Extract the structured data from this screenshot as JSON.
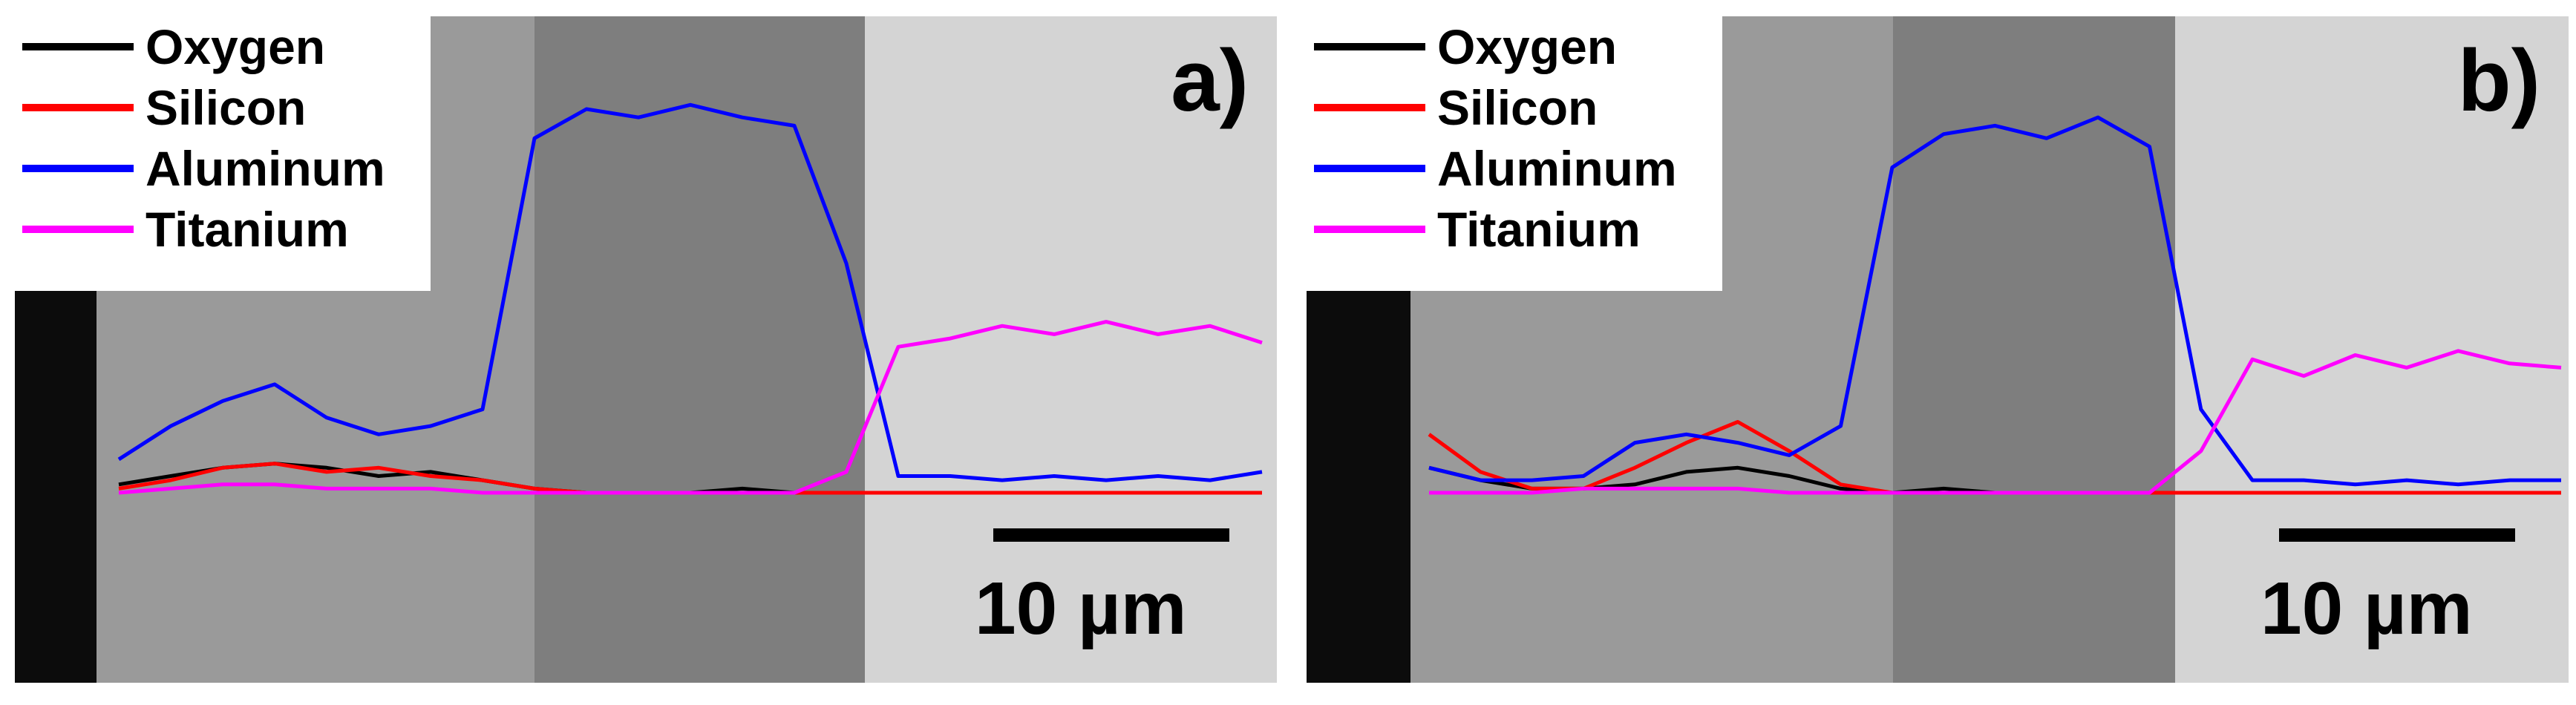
{
  "figure": {
    "panels": [
      {
        "label": "a)",
        "scalebar_label": "10 µm"
      },
      {
        "label": "b)",
        "scalebar_label": "10 µm"
      }
    ],
    "legend": [
      {
        "name": "Oxygen",
        "color": "#000000"
      },
      {
        "name": "Silicon",
        "color": "#ff0000"
      },
      {
        "name": "Aluminum",
        "color": "#0000ff"
      },
      {
        "name": "Titanium",
        "color": "#ff00ff"
      }
    ]
  },
  "chart_data": [
    {
      "type": "line",
      "panel": "a)",
      "x_unit": "µm",
      "xlim": [
        0,
        22
      ],
      "ylim": [
        0,
        1
      ],
      "grid": false,
      "legend_position": "top-left",
      "scalebar_um": 10,
      "series": [
        {
          "name": "Oxygen",
          "color": "#000000",
          "x": [
            0,
            1,
            2,
            3,
            4,
            5,
            6,
            7,
            8,
            9,
            10,
            11,
            12,
            13,
            14,
            15,
            16,
            17,
            18,
            19,
            20,
            21,
            22
          ],
          "y": [
            0.02,
            0.04,
            0.06,
            0.07,
            0.06,
            0.04,
            0.05,
            0.03,
            0.01,
            0.0,
            0.0,
            0.0,
            0.01,
            0.0,
            0.0,
            0.0,
            0.0,
            0.0,
            0.0,
            0.0,
            0.0,
            0.0,
            0.0
          ]
        },
        {
          "name": "Silicon",
          "color": "#ff0000",
          "x": [
            0,
            1,
            2,
            3,
            4,
            5,
            6,
            7,
            8,
            9,
            10,
            11,
            12,
            13,
            14,
            15,
            16,
            17,
            18,
            19,
            20,
            21,
            22
          ],
          "y": [
            0.01,
            0.03,
            0.06,
            0.07,
            0.05,
            0.06,
            0.04,
            0.03,
            0.01,
            0.0,
            0.0,
            0.0,
            0.0,
            0.0,
            0.0,
            0.0,
            0.0,
            0.0,
            0.0,
            0.0,
            0.0,
            0.0,
            0.0
          ]
        },
        {
          "name": "Aluminum",
          "color": "#0000ff",
          "x": [
            0,
            1,
            2,
            3,
            4,
            5,
            6,
            7,
            8,
            9,
            10,
            11,
            12,
            13,
            14,
            15,
            16,
            17,
            18,
            19,
            20,
            21,
            22
          ],
          "y": [
            0.08,
            0.16,
            0.22,
            0.26,
            0.18,
            0.14,
            0.16,
            0.2,
            0.85,
            0.92,
            0.9,
            0.93,
            0.9,
            0.88,
            0.55,
            0.04,
            0.04,
            0.03,
            0.04,
            0.03,
            0.04,
            0.03,
            0.05
          ]
        },
        {
          "name": "Titanium",
          "color": "#ff00ff",
          "x": [
            0,
            1,
            2,
            3,
            4,
            5,
            6,
            7,
            8,
            9,
            10,
            11,
            12,
            13,
            14,
            15,
            16,
            17,
            18,
            19,
            20,
            21,
            22
          ],
          "y": [
            0.0,
            0.01,
            0.02,
            0.02,
            0.01,
            0.01,
            0.01,
            0.0,
            0.0,
            0.0,
            0.0,
            0.0,
            0.0,
            0.0,
            0.05,
            0.35,
            0.37,
            0.4,
            0.38,
            0.41,
            0.38,
            0.4,
            0.36
          ]
        }
      ]
    },
    {
      "type": "line",
      "panel": "b)",
      "x_unit": "µm",
      "xlim": [
        0,
        22
      ],
      "ylim": [
        0,
        1
      ],
      "grid": false,
      "legend_position": "top-left",
      "scalebar_um": 10,
      "series": [
        {
          "name": "Oxygen",
          "color": "#000000",
          "x": [
            0,
            1,
            2,
            3,
            4,
            5,
            6,
            7,
            8,
            9,
            10,
            11,
            12,
            13,
            14,
            15,
            16,
            17,
            18,
            19,
            20,
            21,
            22
          ],
          "y": [
            0.06,
            0.03,
            0.01,
            0.01,
            0.02,
            0.05,
            0.06,
            0.04,
            0.01,
            0.0,
            0.01,
            0.0,
            0.0,
            0.0,
            0.0,
            0.0,
            0.0,
            0.0,
            0.0,
            0.0,
            0.0,
            0.0,
            0.0
          ]
        },
        {
          "name": "Silicon",
          "color": "#ff0000",
          "x": [
            0,
            1,
            2,
            3,
            4,
            5,
            6,
            7,
            8,
            9,
            10,
            11,
            12,
            13,
            14,
            15,
            16,
            17,
            18,
            19,
            20,
            21,
            22
          ],
          "y": [
            0.14,
            0.05,
            0.01,
            0.01,
            0.06,
            0.12,
            0.17,
            0.1,
            0.02,
            0.0,
            0.0,
            0.0,
            0.0,
            0.0,
            0.0,
            0.0,
            0.0,
            0.0,
            0.0,
            0.0,
            0.0,
            0.0,
            0.0
          ]
        },
        {
          "name": "Aluminum",
          "color": "#0000ff",
          "x": [
            0,
            1,
            2,
            3,
            4,
            5,
            6,
            7,
            8,
            9,
            10,
            11,
            12,
            13,
            14,
            15,
            16,
            17,
            18,
            19,
            20,
            21,
            22
          ],
          "y": [
            0.06,
            0.03,
            0.03,
            0.04,
            0.12,
            0.14,
            0.12,
            0.09,
            0.16,
            0.78,
            0.86,
            0.88,
            0.85,
            0.9,
            0.83,
            0.2,
            0.03,
            0.03,
            0.02,
            0.03,
            0.02,
            0.03,
            0.03
          ]
        },
        {
          "name": "Titanium",
          "color": "#ff00ff",
          "x": [
            0,
            1,
            2,
            3,
            4,
            5,
            6,
            7,
            8,
            9,
            10,
            11,
            12,
            13,
            14,
            15,
            16,
            17,
            18,
            19,
            20,
            21,
            22
          ],
          "y": [
            0.0,
            0.0,
            0.0,
            0.01,
            0.01,
            0.01,
            0.01,
            0.0,
            0.0,
            0.0,
            0.0,
            0.0,
            0.0,
            0.0,
            0.0,
            0.1,
            0.32,
            0.28,
            0.33,
            0.3,
            0.34,
            0.31,
            0.3
          ]
        }
      ]
    }
  ]
}
